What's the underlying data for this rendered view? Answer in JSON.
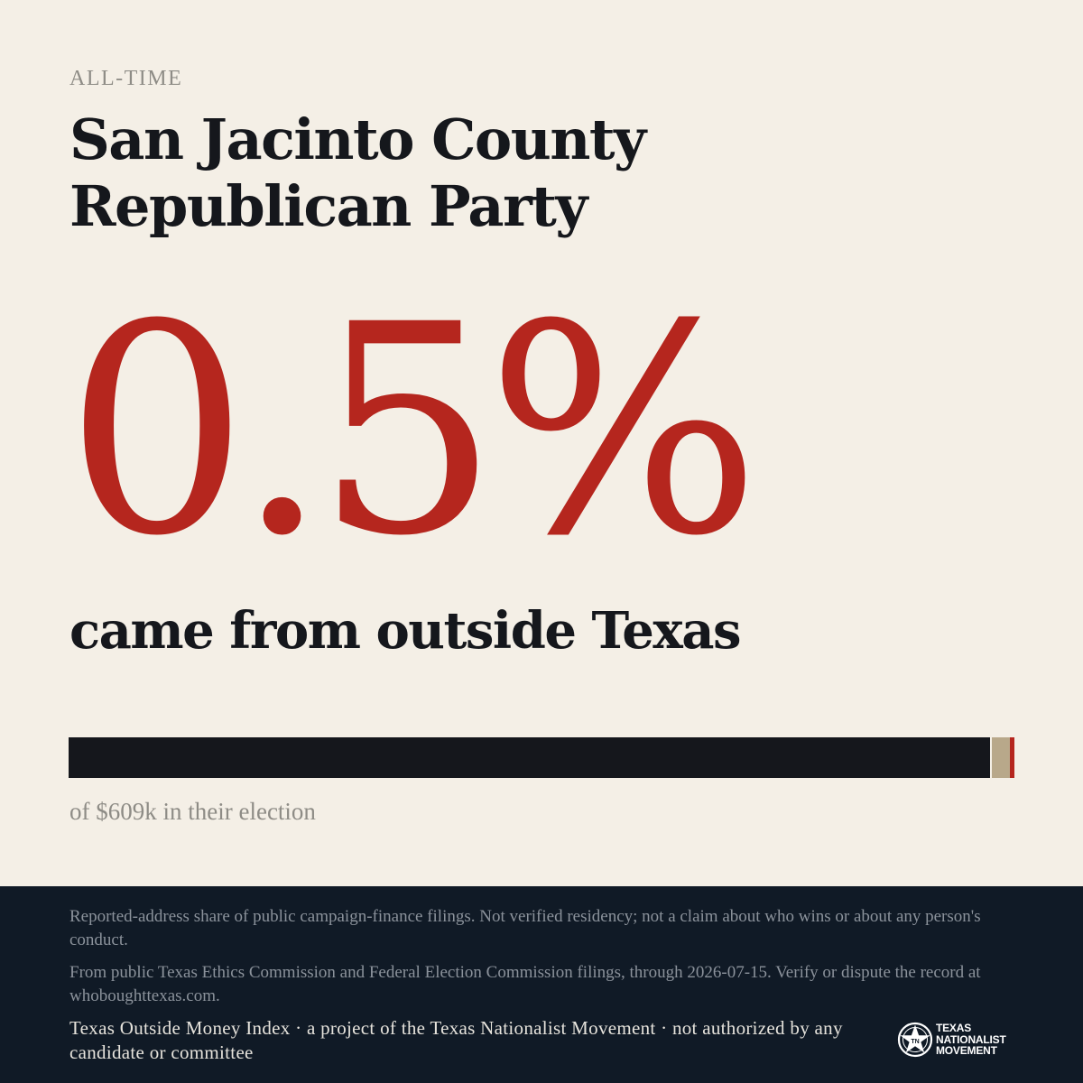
{
  "header": {
    "kicker": "ALL-TIME",
    "title": "San Jacinto County Republican Party"
  },
  "stat": {
    "value": "0.5%",
    "caption": "came from outside Texas"
  },
  "bar": {
    "outside_share_percent": 0.5,
    "caption": "of $609k in their election",
    "colors": {
      "inside": "#15171c",
      "outside": "#b5261e",
      "marker": "#b8a88a"
    }
  },
  "footer": {
    "disclaimer": "Reported-address share of public campaign-finance filings. Not verified residency; not a claim about who wins or about any person's conduct.",
    "source": "From public Texas Ethics Commission and Federal Election Commission filings, through 2026-07-15. Verify or dispute the record at whoboughttexas.com.",
    "credit": "Texas Outside Money Index · a project of the Texas Nationalist Movement · not authorized by any candidate or committee",
    "logo": {
      "icon": "star-seal-icon",
      "lines": [
        "TEXAS",
        "NATIONALIST",
        "MOVEMENT"
      ]
    }
  },
  "colors": {
    "background": "#f4efe6",
    "accent": "#b5261e",
    "ink": "#15171c",
    "footer_bg": "#101a26"
  }
}
